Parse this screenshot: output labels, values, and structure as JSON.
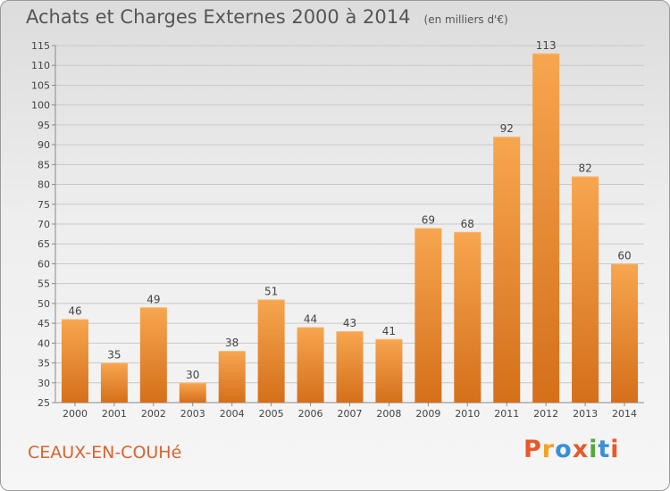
{
  "header": {
    "title": "Achats et Charges Externes 2000 à 2014",
    "subtitle": "(en milliers d'€)"
  },
  "footer": {
    "commune": "CEAUX-EN-COUHé",
    "brand": "Proxiti"
  },
  "colors": {
    "bar_light": "#f7a64f",
    "bar_dark": "#d56f1a",
    "commune_text": "#d9632f",
    "brand_letters": [
      "#e8582a",
      "#f2a21e",
      "#3a8fd6",
      "#e8582a",
      "#57a83c",
      "#3a8fd6",
      "#e8582a"
    ]
  },
  "chart_data": {
    "type": "bar",
    "title": "Achats et Charges Externes 2000 à 2014",
    "subtitle": "(en milliers d'€)",
    "xlabel": "",
    "ylabel": "",
    "categories": [
      "2000",
      "2001",
      "2002",
      "2003",
      "2004",
      "2005",
      "2006",
      "2007",
      "2008",
      "2009",
      "2010",
      "2011",
      "2012",
      "2013",
      "2014"
    ],
    "values": [
      46,
      35,
      49,
      30,
      38,
      51,
      44,
      43,
      41,
      69,
      68,
      92,
      113,
      82,
      60
    ],
    "value_labels": [
      "46",
      "35",
      "49",
      "30",
      "38",
      "51",
      "44",
      "43",
      "41",
      "69",
      "68",
      "92",
      "113",
      "82",
      "60"
    ],
    "ylim": [
      25,
      115
    ],
    "yticks": [
      25,
      30,
      35,
      40,
      45,
      50,
      55,
      60,
      65,
      70,
      75,
      80,
      85,
      90,
      95,
      100,
      105,
      110,
      115
    ],
    "ytick_labels": [
      "25",
      "30",
      "35",
      "40",
      "45",
      "50",
      "55",
      "60",
      "65",
      "70",
      "75",
      "80",
      "85",
      "90",
      "95",
      "100",
      "105",
      "110",
      "115"
    ],
    "grid": true,
    "legend": "none"
  }
}
